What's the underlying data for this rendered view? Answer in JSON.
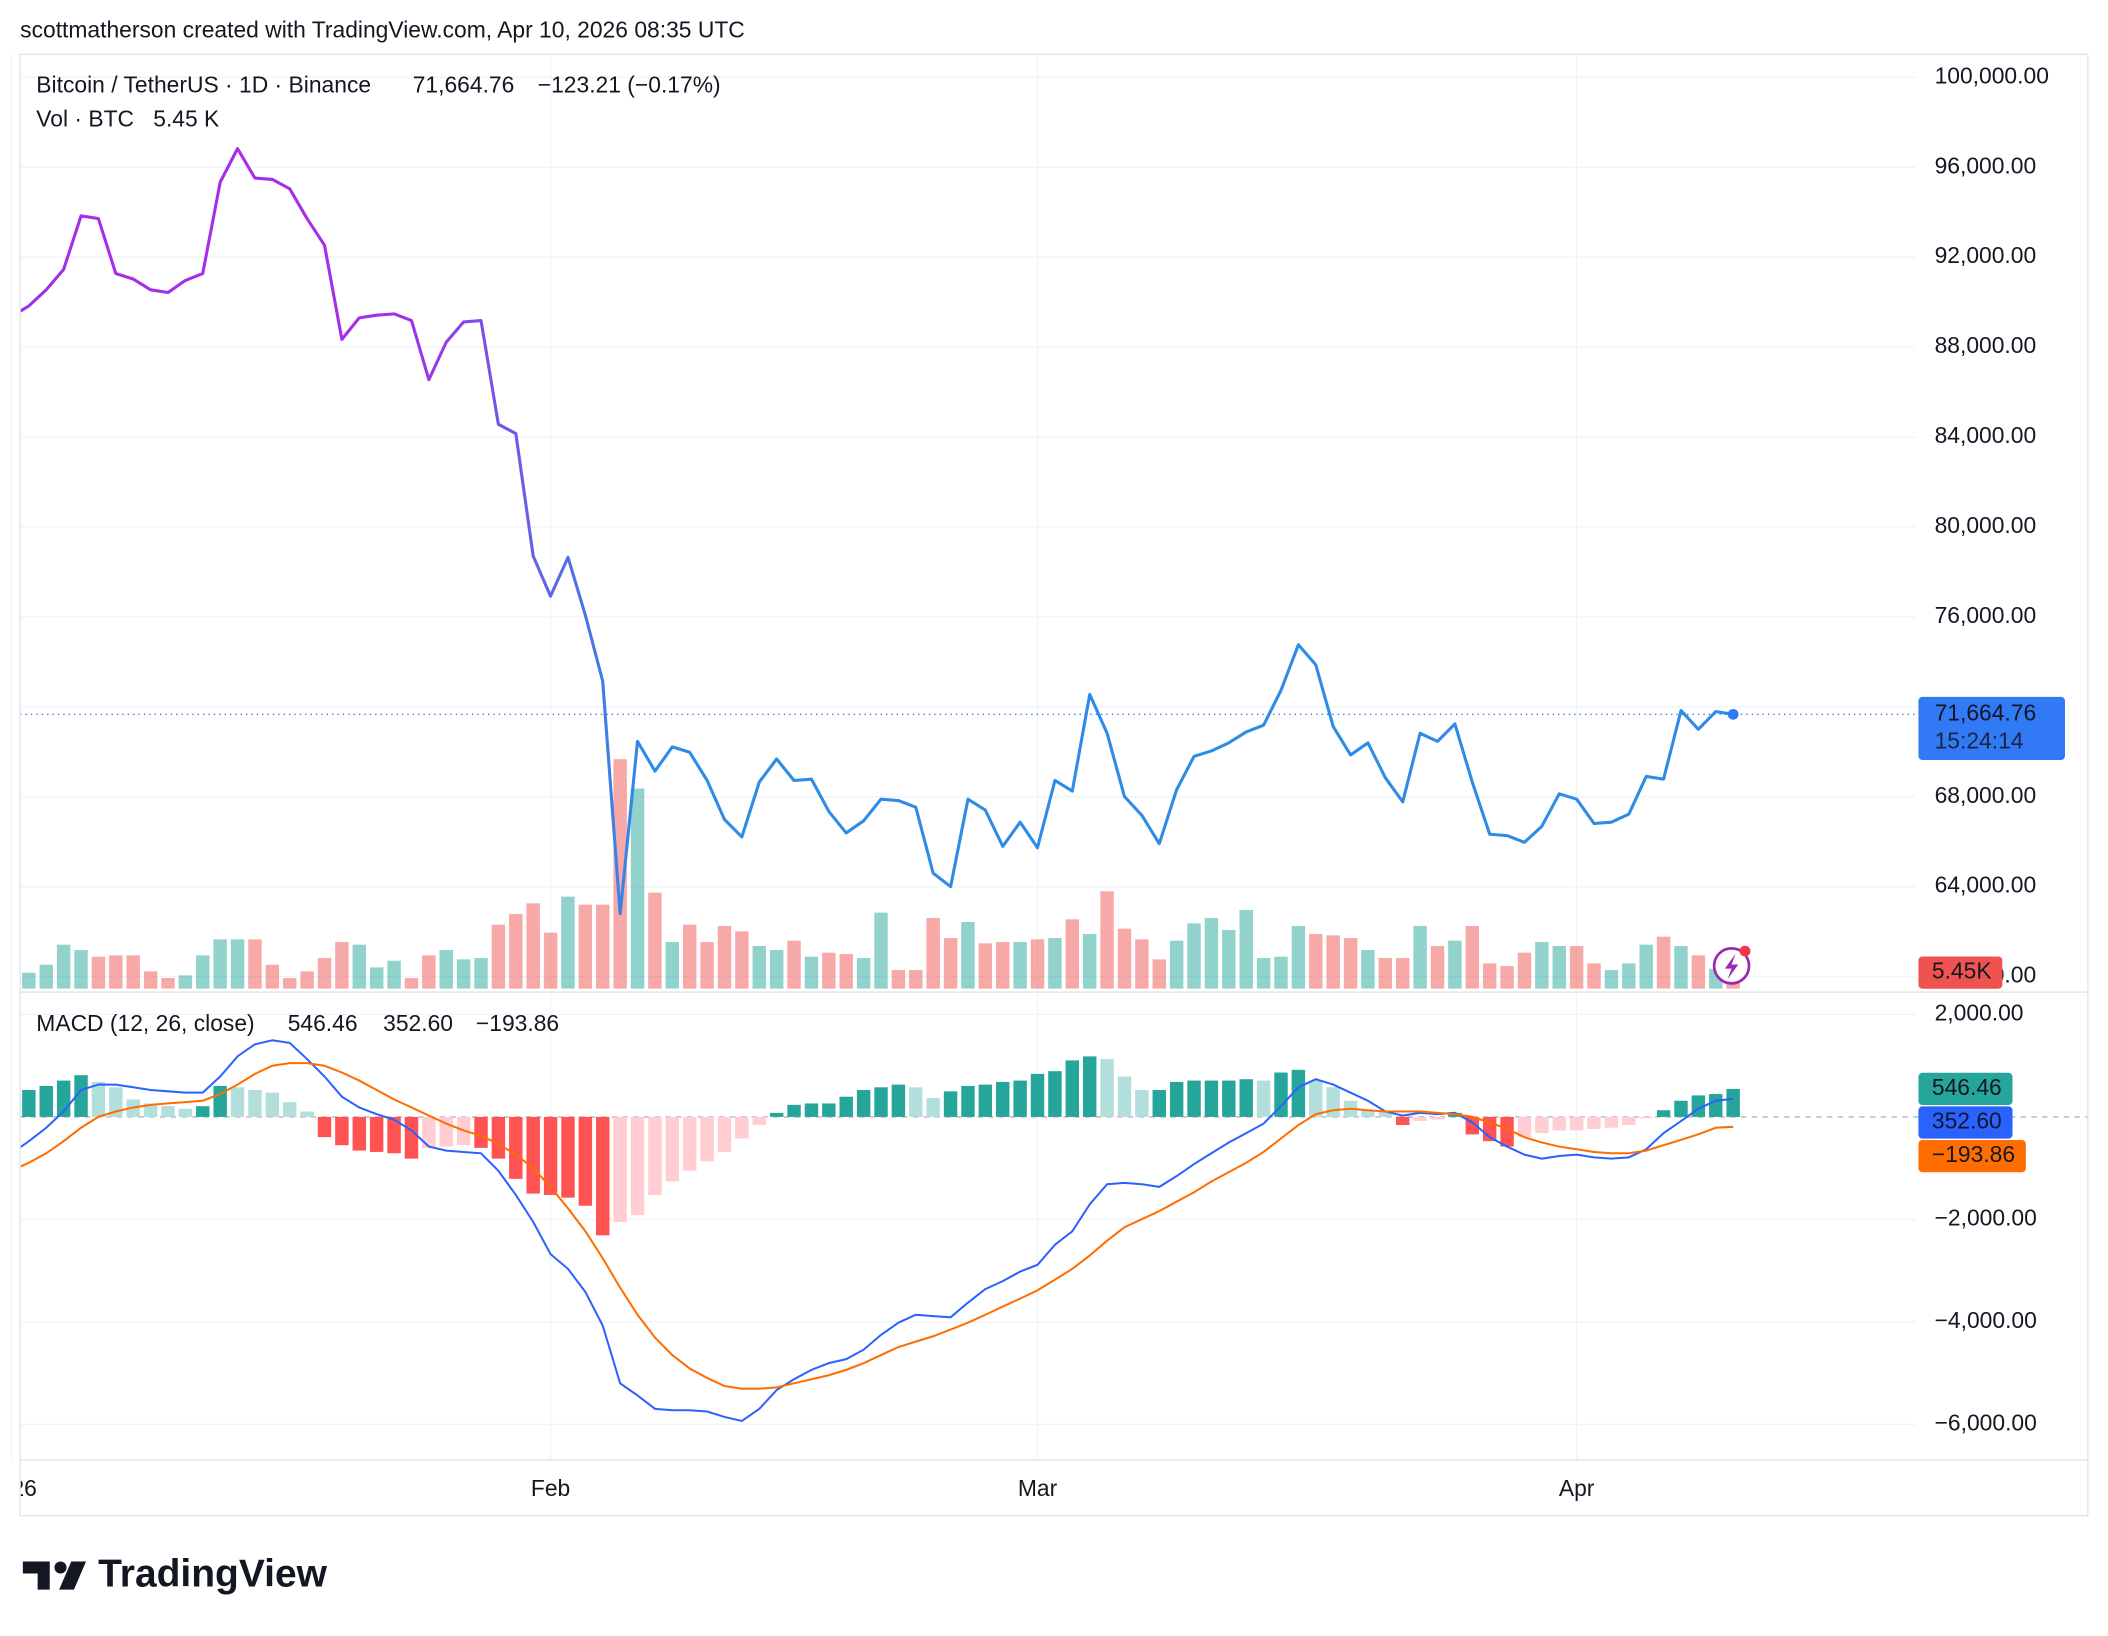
{
  "header": {
    "attribution": "scottmatherson created with TradingView.com, Apr 10, 2026 08:35 UTC"
  },
  "footer": {
    "brand": "TradingView"
  },
  "chart_data": [
    {
      "type": "line",
      "title": "Bitcoin / TetherUS · 1D · Binance",
      "last_label": "71,664.76",
      "change_label": "−123.21 (−0.17%)",
      "countdown": "15:24:14",
      "color": "#2e8be6",
      "gradient_from": "#a52fe8",
      "tag_color": "#3179f5",
      "grid": true,
      "xlim": [
        0.5,
        109.5
      ],
      "xticks": [
        {
          "value": 0,
          "label": "2026"
        },
        {
          "value": 31,
          "label": "Feb"
        },
        {
          "value": 59,
          "label": "Mar"
        },
        {
          "value": 90,
          "label": "Apr"
        }
      ],
      "ylim": [
        59460,
        101020
      ],
      "yticks": [
        {
          "value": 60000,
          "label": "60,000.00"
        },
        {
          "value": 64000,
          "label": "64,000.00"
        },
        {
          "value": 68000,
          "label": "68,000.00"
        },
        {
          "value": 72000,
          "label": "72,000.00"
        },
        {
          "value": 76000,
          "label": "76,000.00"
        },
        {
          "value": 80000,
          "label": "80,000.00"
        },
        {
          "value": 84000,
          "label": "84,000.00"
        },
        {
          "value": 88000,
          "label": "88,000.00"
        },
        {
          "value": 92000,
          "label": "92,000.00"
        },
        {
          "value": 96000,
          "label": "96,000.00"
        },
        {
          "value": 100000,
          "label": "100,000.00"
        }
      ],
      "values": [
        89360,
        89830,
        90550,
        91450,
        93840,
        93720,
        91270,
        91030,
        90550,
        90430,
        90970,
        91270,
        95340,
        96830,
        95520,
        95460,
        95040,
        93720,
        92530,
        88340,
        89300,
        89420,
        89480,
        89180,
        86550,
        88220,
        89120,
        89180,
        84570,
        84150,
        78710,
        76920,
        78650,
        76080,
        73150,
        62800,
        70460,
        69140,
        70220,
        69980,
        68720,
        66990,
        66210,
        68660,
        69680,
        68720,
        68780,
        67350,
        66390,
        66930,
        67890,
        67830,
        67530,
        64600,
        64000,
        67890,
        67410,
        65790,
        66870,
        65730,
        68720,
        68250,
        72550,
        70820,
        68010,
        67170,
        65910,
        68310,
        69800,
        70040,
        70400,
        70880,
        71180,
        72730,
        74760,
        73870,
        71120,
        69860,
        70400,
        68840,
        67770,
        70820,
        70460,
        71240,
        68660,
        66330,
        66270,
        65970,
        66690,
        68130,
        67890,
        66810,
        66870,
        67230,
        68900,
        68780,
        71830,
        71000,
        71790,
        71664.76
      ],
      "volume": {
        "title": "Vol · BTC",
        "last_label": "5.45 K",
        "tag_label": "5.45K",
        "ylim": [
          0,
          700
        ],
        "up_color": "#26a69a",
        "down_color": "#ef5350",
        "tag_color": "#f23645",
        "values": [
          29,
          12,
          18,
          33,
          29,
          24,
          25,
          25,
          13,
          8,
          10,
          25,
          37,
          37,
          37,
          18,
          8,
          13,
          23,
          35,
          33,
          16,
          21,
          8,
          25,
          29,
          22,
          23,
          48,
          56,
          64,
          42,
          69,
          63,
          63,
          172,
          150,
          72,
          35,
          48,
          35,
          47,
          43,
          32,
          29,
          36,
          24,
          27,
          26,
          23,
          57,
          14,
          14,
          53,
          38,
          50,
          34,
          35,
          35,
          37,
          38,
          52,
          41,
          73,
          45,
          37,
          22,
          36,
          49,
          53,
          44,
          59,
          23,
          24,
          47,
          41,
          40,
          38,
          29,
          23,
          23,
          47,
          32,
          36,
          47,
          19,
          17,
          27,
          35,
          32,
          32,
          19,
          14,
          19,
          33,
          39,
          32,
          25,
          15,
          5.45
        ]
      }
    },
    {
      "type": "macd",
      "title": "MACD (12, 26, close)",
      "xlim": [
        0.5,
        109.5
      ],
      "ylim": [
        -6680,
        2370
      ],
      "yticks": [
        {
          "value": 2000,
          "label": "2,000.00"
        },
        {
          "value": -2000,
          "label": "−2,000.00"
        },
        {
          "value": -4000,
          "label": "−4,000.00"
        },
        {
          "value": -6000,
          "label": "−6,000.00"
        }
      ],
      "series": [
        {
          "style": "histogram",
          "color": "#26a69a",
          "colors": [
            "#26a69a",
            "#b2dfdb",
            "#ffcdd2",
            "#ff5252"
          ],
          "last_label": "546.46",
          "values": [
            473,
            525,
            604,
            709,
            814,
            683,
            578,
            341,
            263,
            210,
            158,
            210,
            604,
            578,
            525,
            473,
            289,
            105,
            -394,
            -551,
            -656,
            -683,
            -709,
            -814,
            -604,
            -578,
            -551,
            -604,
            -814,
            -1208,
            -1496,
            -1523,
            -1575,
            -1733,
            -2310,
            -2048,
            -1916,
            -1523,
            -1260,
            -1050,
            -866,
            -683,
            -420,
            -158,
            79,
            236,
            263,
            263,
            394,
            525,
            578,
            630,
            578,
            368,
            499,
            604,
            630,
            683,
            709,
            840,
            893,
            1103,
            1181,
            1129,
            788,
            525,
            525,
            683,
            709,
            709,
            709,
            735,
            709,
            866,
            919,
            709,
            578,
            315,
            131,
            105,
            -158,
            -79,
            -53,
            79,
            -341,
            -473,
            -578,
            -394,
            -315,
            -263,
            -263,
            -236,
            -210,
            -158,
            -26,
            131,
            315,
            420,
            446,
            546.46
          ]
        },
        {
          "style": "line",
          "color": "#2962ff",
          "last_label": "352.60",
          "values": [
            -709,
            -473,
            -210,
            105,
            525,
            630,
            630,
            578,
            525,
            499,
            473,
            473,
            788,
            1181,
            1418,
            1496,
            1444,
            1129,
            788,
            394,
            184,
            53,
            -53,
            -263,
            -578,
            -656,
            -683,
            -709,
            -1050,
            -1523,
            -2048,
            -2678,
            -2966,
            -3413,
            -4069,
            -5198,
            -5434,
            -5696,
            -5723,
            -5723,
            -5749,
            -5854,
            -5933,
            -5696,
            -5329,
            -5119,
            -4935,
            -4804,
            -4725,
            -4541,
            -4253,
            -4016,
            -3859,
            -3885,
            -3911,
            -3623,
            -3360,
            -3203,
            -3019,
            -2888,
            -2494,
            -2231,
            -1706,
            -1313,
            -1286,
            -1313,
            -1365,
            -1155,
            -919,
            -709,
            -499,
            -315,
            -131,
            210,
            578,
            735,
            630,
            473,
            315,
            105,
            26,
            79,
            53,
            79,
            -105,
            -394,
            -578,
            -735,
            -814,
            -761,
            -735,
            -788,
            -814,
            -788,
            -630,
            -315,
            -79,
            158,
            315,
            352.6
          ]
        },
        {
          "style": "line",
          "color": "#ff6d00",
          "last_label": "−193.86",
          "values": [
            -1050,
            -893,
            -709,
            -473,
            -210,
            0,
            105,
            184,
            236,
            263,
            289,
            315,
            446,
            630,
            840,
            998,
            1050,
            1050,
            998,
            866,
            709,
            525,
            341,
            184,
            26,
            -131,
            -263,
            -368,
            -525,
            -735,
            -998,
            -1365,
            -1785,
            -2231,
            -2756,
            -3334,
            -3859,
            -4305,
            -4646,
            -4909,
            -5093,
            -5250,
            -5303,
            -5303,
            -5276,
            -5198,
            -5119,
            -5040,
            -4935,
            -4804,
            -4646,
            -4489,
            -4384,
            -4279,
            -4148,
            -4016,
            -3859,
            -3701,
            -3544,
            -3386,
            -3176,
            -2966,
            -2704,
            -2415,
            -2153,
            -1995,
            -1838,
            -1654,
            -1470,
            -1260,
            -1076,
            -893,
            -683,
            -420,
            -158,
            53,
            131,
            158,
            131,
            105,
            105,
            105,
            79,
            53,
            0,
            -105,
            -236,
            -394,
            -499,
            -578,
            -630,
            -683,
            -709,
            -709,
            -656,
            -551,
            -446,
            -341,
            -210,
            -193.86
          ]
        }
      ]
    }
  ]
}
